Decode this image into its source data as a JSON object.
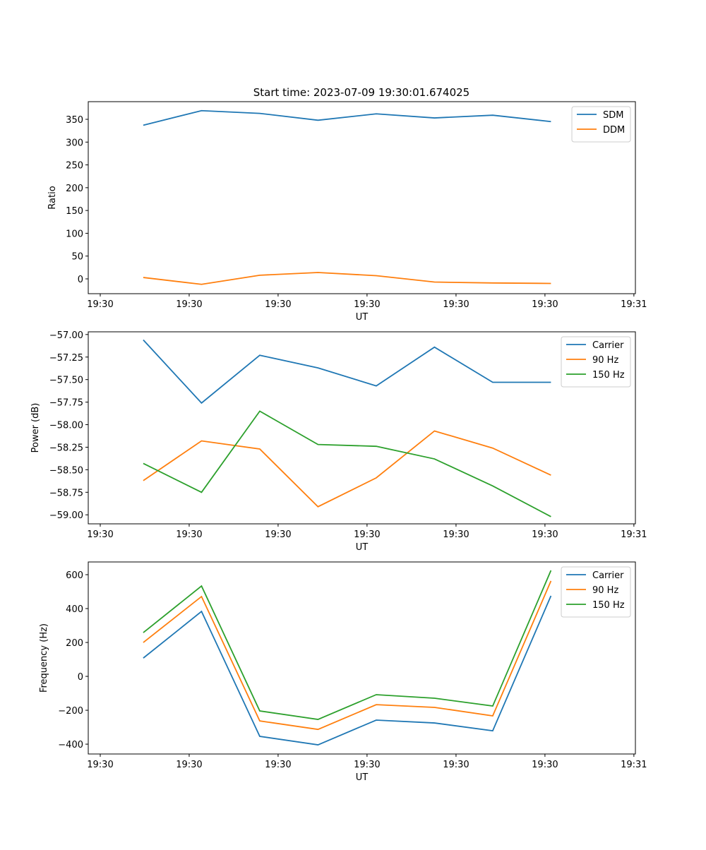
{
  "title": "Start time: 2023-07-09 19:30:01.674025",
  "chart_data": [
    {
      "type": "line",
      "xlabel": "UT",
      "ylabel": "Ratio",
      "ylim": [
        -32.5,
        388.7
      ],
      "xlim": [
        -0.945,
        8.45
      ],
      "xticks": [
        -0.739,
        0.788,
        2.315,
        3.842,
        5.37,
        6.897,
        8.424
      ],
      "xticklabels": [
        "19:30",
        "19:30",
        "19:30",
        "19:30",
        "19:30",
        "19:30",
        "19:31"
      ],
      "yticks": [
        0,
        50,
        100,
        150,
        200,
        250,
        300,
        350
      ],
      "yticklabels": [
        "0",
        "50",
        "100",
        "150",
        "200",
        "250",
        "300",
        "350"
      ],
      "legend": "top-right",
      "x": [
        0,
        1,
        2,
        3,
        4,
        5,
        6,
        7
      ],
      "series": [
        {
          "name": "SDM",
          "color": "#1f77b4",
          "values": [
            337,
            369,
            363,
            348,
            362,
            353,
            359,
            345
          ]
        },
        {
          "name": "DDM",
          "color": "#ff7f0e",
          "values": [
            3,
            -12,
            8,
            14,
            7,
            -7,
            -9,
            -10
          ]
        }
      ]
    },
    {
      "type": "line",
      "xlabel": "UT",
      "ylabel": "Power (dB)",
      "ylim": [
        -59.1,
        -56.97
      ],
      "xlim": [
        -0.945,
        8.45
      ],
      "xticks": [
        -0.739,
        0.788,
        2.315,
        3.842,
        5.37,
        6.897,
        8.424
      ],
      "xticklabels": [
        "19:30",
        "19:30",
        "19:30",
        "19:30",
        "19:30",
        "19:30",
        "19:31"
      ],
      "yticks": [
        -59,
        -58.75,
        -58.5,
        -58.25,
        -58,
        -57.75,
        -57.5,
        -57.25,
        -57
      ],
      "yticklabels": [
        "−59.00",
        "−58.75",
        "−58.50",
        "−58.25",
        "−58.00",
        "−57.75",
        "−57.50",
        "−57.25",
        "−57.00"
      ],
      "legend": "top-right",
      "x": [
        0,
        1,
        2,
        3,
        4,
        5,
        6,
        7
      ],
      "series": [
        {
          "name": "Carrier",
          "color": "#1f77b4",
          "values": [
            -57.06,
            -57.76,
            -57.23,
            -57.37,
            -57.57,
            -57.14,
            -57.53,
            -57.53
          ]
        },
        {
          "name": "90 Hz",
          "color": "#ff7f0e",
          "values": [
            -58.62,
            -58.18,
            -58.27,
            -58.91,
            -58.59,
            -58.07,
            -58.26,
            -58.56
          ]
        },
        {
          "name": "150 Hz",
          "color": "#2ca02c",
          "values": [
            -58.43,
            -58.75,
            -57.85,
            -58.22,
            -58.24,
            -58.38,
            -58.68,
            -59.02
          ]
        }
      ]
    },
    {
      "type": "line",
      "xlabel": "UT",
      "ylabel": "Frequency (Hz)",
      "ylim": [
        -458,
        675
      ],
      "xlim": [
        -0.945,
        8.45
      ],
      "xticks": [
        -0.739,
        0.788,
        2.315,
        3.842,
        5.37,
        6.897,
        8.424
      ],
      "xticklabels": [
        "19:30",
        "19:30",
        "19:30",
        "19:30",
        "19:30",
        "19:30",
        "19:31"
      ],
      "yticks": [
        -400,
        -200,
        0,
        200,
        400,
        600
      ],
      "yticklabels": [
        "−400",
        "−200",
        "0",
        "200",
        "400",
        "600"
      ],
      "legend": "top-right",
      "x": [
        0,
        1,
        2,
        3,
        4,
        5,
        6,
        7
      ],
      "series": [
        {
          "name": "Carrier",
          "color": "#1f77b4",
          "values": [
            108,
            383,
            -354,
            -404,
            -258,
            -275,
            -321,
            475
          ]
        },
        {
          "name": "90 Hz",
          "color": "#ff7f0e",
          "values": [
            200,
            471,
            -263,
            -313,
            -167,
            -183,
            -233,
            563
          ]
        },
        {
          "name": "150 Hz",
          "color": "#2ca02c",
          "values": [
            258,
            533,
            -204,
            -254,
            -108,
            -129,
            -175,
            625
          ]
        }
      ]
    }
  ]
}
